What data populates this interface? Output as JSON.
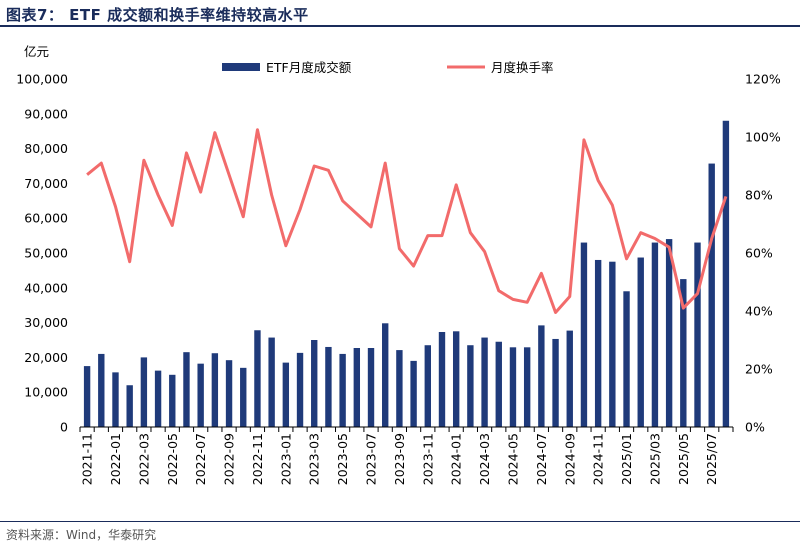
{
  "figure_title": "图表7：  ETF 成交额和换手率维持较高水平",
  "source_note": "资料来源：Wind，华泰研究",
  "chart_data": {
    "type": "bar",
    "combo": "bar + line (secondary axis)",
    "left_axis": {
      "unit_label": "亿元",
      "ylim": [
        0,
        100000
      ],
      "ticks": [
        "0",
        "10,000",
        "20,000",
        "30,000",
        "40,000",
        "50,000",
        "60,000",
        "70,000",
        "80,000",
        "90,000",
        "100,000"
      ]
    },
    "right_axis": {
      "ylim": [
        0,
        120
      ],
      "ticks": [
        "0%",
        "20%",
        "40%",
        "60%",
        "80%",
        "100%",
        "120%"
      ]
    },
    "x_tick_labels": [
      "2021-11",
      "2022-01",
      "2022-03",
      "2022-05",
      "2022-07",
      "2022-09",
      "2022-11",
      "2023-01",
      "2023-03",
      "2023-05",
      "2023-07",
      "2023-09",
      "2023-11",
      "2024-01",
      "2024-03",
      "2024-05",
      "2024-07",
      "2024-09",
      "2024-11",
      "2025/01",
      "2025/03",
      "2025/05",
      "2025/07"
    ],
    "categories": [
      "2021-11",
      "2021-12",
      "2022-01",
      "2022-02",
      "2022-03",
      "2022-04",
      "2022-05",
      "2022-06",
      "2022-07",
      "2022-08",
      "2022-09",
      "2022-10",
      "2022-11",
      "2022-12",
      "2023-01",
      "2023-02",
      "2023-03",
      "2023-04",
      "2023-05",
      "2023-06",
      "2023-07",
      "2023-08",
      "2023-09",
      "2023-10",
      "2023-11",
      "2023-12",
      "2024-01",
      "2024-02",
      "2024-03",
      "2024-04",
      "2024-05",
      "2024-06",
      "2024-07",
      "2024-08",
      "2024-09",
      "2024-10",
      "2024-11",
      "2024-12",
      "2025-01",
      "2025-02",
      "2025-03",
      "2025-04",
      "2025-05",
      "2025-06",
      "2025-07",
      "2025-08"
    ],
    "series": [
      {
        "name": "ETF月度成交额",
        "axis": "left",
        "type": "bar",
        "color": "#1f3a7a",
        "values": [
          17500,
          21000,
          15700,
          12000,
          20000,
          16200,
          15000,
          21500,
          18200,
          21200,
          19200,
          17000,
          27800,
          25700,
          18500,
          21300,
          25000,
          23000,
          21000,
          22700,
          22700,
          29800,
          22100,
          19000,
          23500,
          27300,
          27500,
          23500,
          25700,
          24500,
          22900,
          22900,
          29200,
          25300,
          27700,
          53000,
          48000,
          47500,
          39000,
          48700,
          53000,
          54000,
          42500,
          53000,
          75700,
          88000
        ]
      },
      {
        "name": "月度换手率",
        "axis": "right",
        "type": "line",
        "color": "#f26b6b",
        "values": [
          87,
          91,
          76,
          57,
          92,
          80,
          69.5,
          94.5,
          81,
          101.5,
          87,
          72.5,
          102.5,
          80,
          62.5,
          75,
          90,
          88.5,
          78,
          73.5,
          69,
          91,
          61.5,
          55.5,
          66,
          66,
          83.5,
          67,
          60.5,
          47,
          44,
          43,
          53,
          39.5,
          45,
          99,
          85,
          76.5,
          58,
          67,
          65,
          62,
          41,
          46,
          65,
          79.5
        ]
      }
    ]
  }
}
